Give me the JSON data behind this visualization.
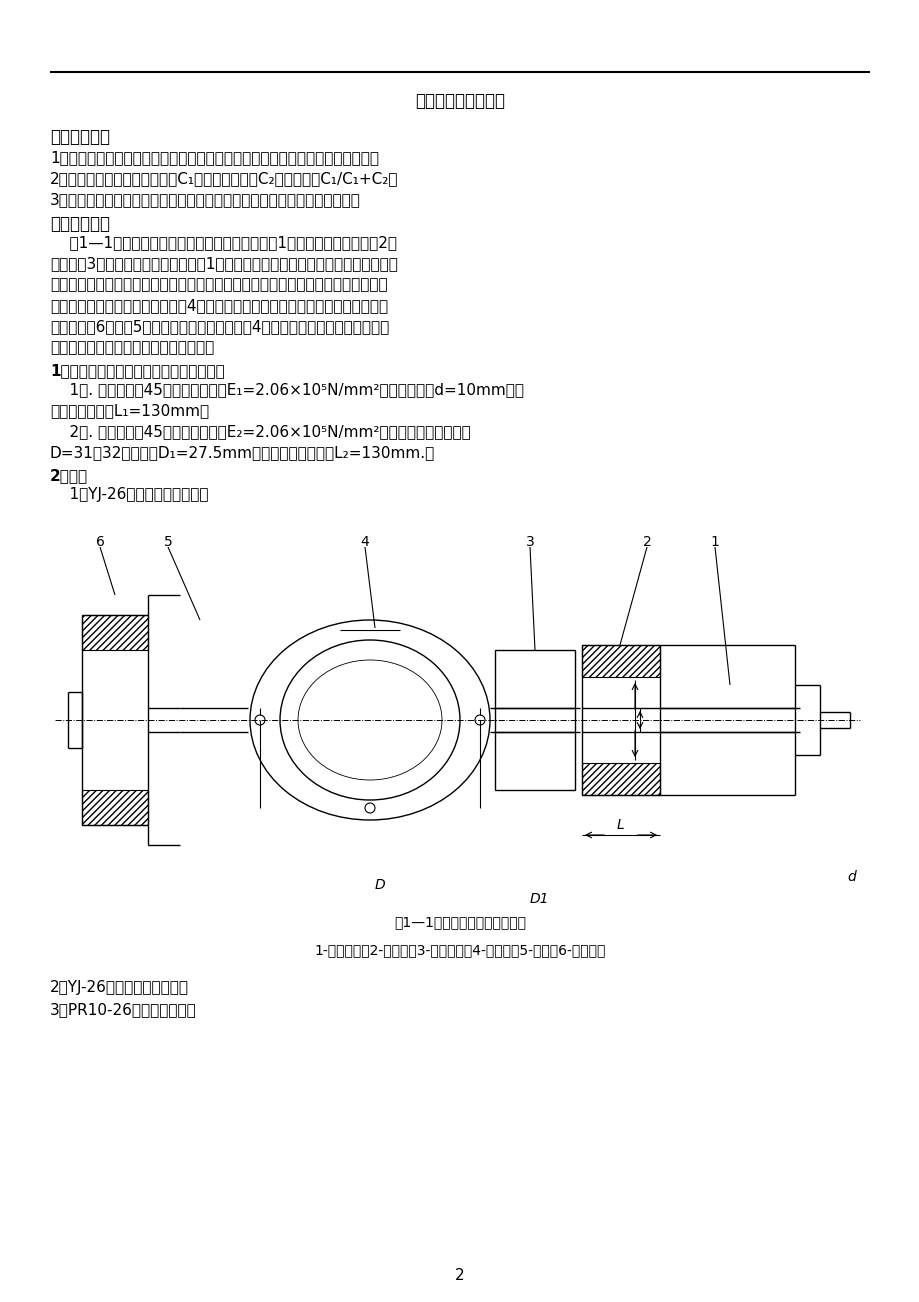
{
  "page_title": "螺栓联接实验指导书",
  "section1_title": "一．实验目的",
  "section1_items": [
    "1．掌握测试受轴向工作载荷的紧螺栓联接的受力和变形曲线（即变形协调图）。",
    "2．掌握求联接件（螺栓）刚度C₁、被联接件刚度C₂、相对刚度C₁/C₁+C₂。",
    "3．了解试验预紧力和相对刚度对应力幅的影响，以考察对螺栓疲劳的影响。"
  ],
  "section2_title": "二．实验设备",
  "section2_lines": [
    "    图1—1为螺栓联接实验机结构组成示意图，手轮1相当于螺母，与螺栓杆2相",
    "连。套筒3相当于被联接件，拧紧手轮1就可将联接副预紧，并且联接件受拉力作用，",
    "被联接件受压力作用。在螺栓杆和套筒上均贴有电阻应变片，用电阻应变仪测量它们",
    "的应变来求受力和变形量。测力环4是用来间接的指示轴向工作载荷的。拧紧加载手",
    "轮（螺母）6使拉杆5产生轴向拉力，经过测力环4将轴向力作用到螺杆上。测力环",
    "上的百分表读数正比于轴向载荷的大小。"
  ],
  "subsection1_title": "1．螺栓联接实验机的主要实验参数如下：",
  "sub1_lines": [
    "    1）. 螺栓材料为45号钢，弹性模量E₁=2.06×10⁵N/mm²，螺栓杆直径d=10mm，有",
    "效变形计算长度L₁=130mm。",
    "    2）. 套筒材料为45号钢，弹性模量E₂=2.06×10⁵N/mm²，两件套筒外径分别为",
    "D=31和32，内径为D₁=27.5mm，有效变形计算长度L₂=130mm.。"
  ],
  "subsection2_title": "2．仪器",
  "sub2_line": "    1）YJ-26型数字电阻应变仪。",
  "diagram_numbers": [
    "6",
    "5",
    "4",
    "3",
    "2",
    "1"
  ],
  "diagram_num_x": [
    100,
    168,
    365,
    530,
    647,
    715
  ],
  "diagram_caption": "图1—1螺栓联接实验机结构图。",
  "diagram_labels": "1-预紧手轮；2-螺栓杆；3-被连接件；4-测力环；5-拉杆；6-加载手轮",
  "section3_items": [
    "2）YJ-26型数字电阻应变仪。",
    "3）PR10-26型预调平衡箱。"
  ],
  "page_number": "2",
  "bg_color": "#ffffff"
}
